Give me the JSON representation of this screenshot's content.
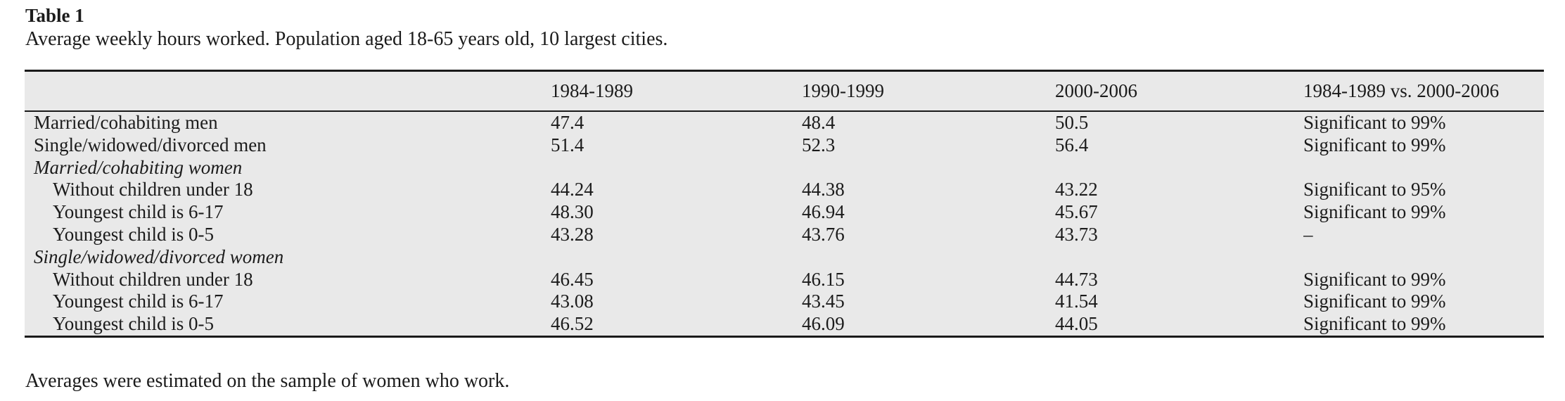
{
  "theme": {
    "table_background": "#e9e9e9",
    "rule_color": "#1a1a1a",
    "text_color": "#1b1b1b",
    "page_background": "#ffffff"
  },
  "table": {
    "title": "Table 1",
    "caption": "Average weekly hours worked. Population aged 18-65 years old, 10 largest cities.",
    "columns": [
      "",
      "1984-1989",
      "1990-1999",
      "2000-2006",
      "1984-1989 vs. 2000-2006"
    ],
    "rows": [
      {
        "label": "Married/cohabiting men",
        "indent": false,
        "italic": false,
        "values": [
          "47.4",
          "48.4",
          "50.5",
          "Significant to 99%"
        ]
      },
      {
        "label": "Single/widowed/divorced men",
        "indent": false,
        "italic": false,
        "values": [
          "51.4",
          "52.3",
          "56.4",
          "Significant to 99%"
        ]
      },
      {
        "label": "Married/cohabiting women",
        "indent": false,
        "italic": true,
        "values": [
          "",
          "",
          "",
          ""
        ]
      },
      {
        "label": "Without children under 18",
        "indent": true,
        "italic": false,
        "values": [
          "44.24",
          "44.38",
          "43.22",
          "Significant to 95%"
        ]
      },
      {
        "label": "Youngest child is 6-17",
        "indent": true,
        "italic": false,
        "values": [
          "48.30",
          "46.94",
          "45.67",
          "Significant to 99%"
        ]
      },
      {
        "label": "Youngest child is 0-5",
        "indent": true,
        "italic": false,
        "values": [
          "43.28",
          "43.76",
          "43.73",
          "–"
        ]
      },
      {
        "label": "Single/widowed/divorced women",
        "indent": false,
        "italic": true,
        "values": [
          "",
          "",
          "",
          ""
        ]
      },
      {
        "label": "Without children under 18",
        "indent": true,
        "italic": false,
        "values": [
          "46.45",
          "46.15",
          "44.73",
          "Significant to 99%"
        ]
      },
      {
        "label": "Youngest child is 6-17",
        "indent": true,
        "italic": false,
        "values": [
          "43.08",
          "43.45",
          "41.54",
          "Significant to 99%"
        ]
      },
      {
        "label": "Youngest child is 0-5",
        "indent": true,
        "italic": false,
        "values": [
          "46.52",
          "46.09",
          "44.05",
          "Significant to 99%"
        ]
      }
    ],
    "footnote": "Averages were estimated on the sample of women who work."
  }
}
